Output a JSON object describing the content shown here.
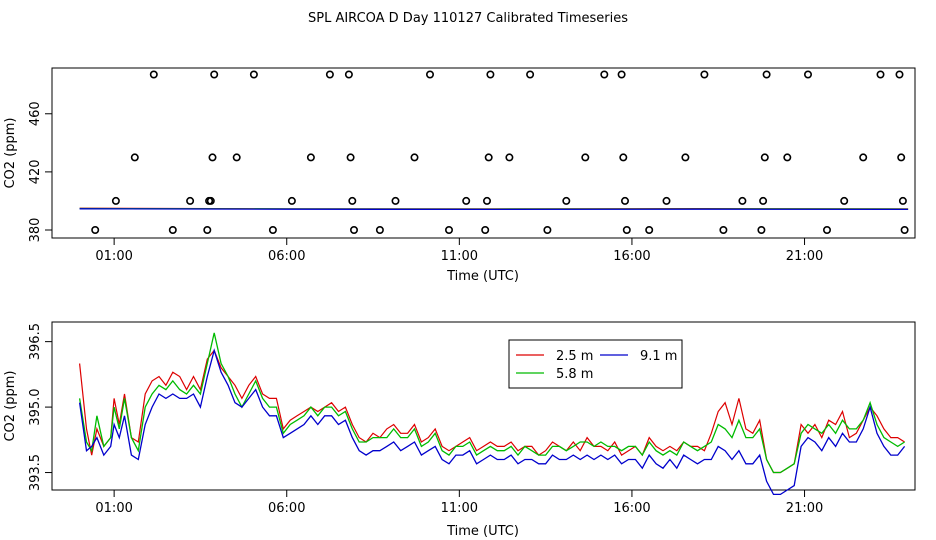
{
  "title": "SPL AIRCOA D  Day 110127  Calibrated Timeseries",
  "colors": {
    "2.5 m": "#dd0000",
    "5.8 m": "#00bb00",
    "9.1 m": "#0000cc",
    "points": "#000000"
  },
  "chart_data": [
    {
      "type": "scatter",
      "xlabel": "Time (UTC)",
      "ylabel": "CO2 (ppm)",
      "xlim": [
        -0.8,
        24.2
      ],
      "ylim": [
        374.5,
        491.5
      ],
      "x_ticks": [
        1,
        6,
        11,
        16,
        21
      ],
      "x_tick_labels": [
        "01:00",
        "06:00",
        "11:00",
        "16:00",
        "21:00"
      ],
      "y_ticks": [
        380,
        420,
        460
      ],
      "y_tick_labels": [
        "380",
        "420",
        "460"
      ],
      "grid": false,
      "points": [
        [
          0.45,
          380
        ],
        [
          1.05,
          400
        ],
        [
          1.6,
          430
        ],
        [
          2.15,
          487
        ],
        [
          2.7,
          380
        ],
        [
          3.2,
          400
        ],
        [
          3.7,
          380
        ],
        [
          3.75,
          400
        ],
        [
          3.8,
          400
        ],
        [
          3.85,
          430
        ],
        [
          3.9,
          487
        ],
        [
          4.55,
          430
        ],
        [
          5.05,
          487
        ],
        [
          5.6,
          380
        ],
        [
          6.15,
          400
        ],
        [
          6.7,
          430
        ],
        [
          7.25,
          487
        ],
        [
          7.8,
          487
        ],
        [
          7.85,
          430
        ],
        [
          7.9,
          400
        ],
        [
          7.95,
          380
        ],
        [
          8.7,
          380
        ],
        [
          9.15,
          400
        ],
        [
          9.7,
          430
        ],
        [
          10.15,
          487
        ],
        [
          10.7,
          380
        ],
        [
          11.2,
          400
        ],
        [
          11.75,
          380
        ],
        [
          11.8,
          400
        ],
        [
          11.85,
          430
        ],
        [
          11.9,
          487
        ],
        [
          12.45,
          430
        ],
        [
          13.05,
          487
        ],
        [
          13.55,
          380
        ],
        [
          14.1,
          400
        ],
        [
          14.65,
          430
        ],
        [
          15.2,
          487
        ],
        [
          15.7,
          487
        ],
        [
          15.75,
          430
        ],
        [
          15.8,
          400
        ],
        [
          15.85,
          380
        ],
        [
          16.5,
          380
        ],
        [
          17.0,
          400
        ],
        [
          17.55,
          430
        ],
        [
          18.1,
          487
        ],
        [
          18.65,
          380
        ],
        [
          19.2,
          400
        ],
        [
          19.75,
          380
        ],
        [
          19.8,
          400
        ],
        [
          19.85,
          430
        ],
        [
          19.9,
          487
        ],
        [
          20.5,
          430
        ],
        [
          21.1,
          487
        ],
        [
          21.65,
          380
        ],
        [
          22.15,
          400
        ],
        [
          22.7,
          430
        ],
        [
          23.2,
          487
        ],
        [
          23.75,
          487
        ],
        [
          23.8,
          430
        ],
        [
          23.85,
          400
        ],
        [
          23.9,
          380
        ]
      ],
      "series": [
        {
          "name": "2.5 m",
          "x": [
            0,
            6,
            12,
            18,
            24
          ],
          "values": [
            395.0,
            394.6,
            394.5,
            394.7,
            394.5
          ]
        },
        {
          "name": "5.8 m",
          "x": [
            0,
            6,
            12,
            18,
            24
          ],
          "values": [
            394.8,
            394.5,
            394.4,
            394.5,
            394.4
          ]
        },
        {
          "name": "9.1 m",
          "x": [
            0,
            6,
            12,
            18,
            24
          ],
          "values": [
            394.6,
            394.3,
            394.2,
            394.3,
            394.2
          ]
        }
      ]
    },
    {
      "type": "line",
      "xlabel": "Time (UTC)",
      "ylabel": "CO2 (ppm)",
      "xlim": [
        -0.8,
        24.2
      ],
      "ylim": [
        393.1,
        396.95
      ],
      "x_ticks": [
        1,
        6,
        11,
        16,
        21
      ],
      "x_tick_labels": [
        "01:00",
        "06:00",
        "11:00",
        "16:00",
        "21:00"
      ],
      "y_ticks": [
        393.5,
        395.0,
        396.5
      ],
      "y_tick_labels": [
        "393.5",
        "395.0",
        "396.5"
      ],
      "grid": false,
      "legend": {
        "placement": "top-right"
      },
      "x": [
        0.0,
        0.2,
        0.35,
        0.5,
        0.7,
        0.9,
        1.0,
        1.15,
        1.3,
        1.5,
        1.7,
        1.9,
        2.1,
        2.3,
        2.5,
        2.7,
        2.9,
        3.1,
        3.3,
        3.5,
        3.7,
        3.9,
        4.1,
        4.3,
        4.5,
        4.7,
        4.9,
        5.1,
        5.3,
        5.5,
        5.7,
        5.9,
        6.1,
        6.3,
        6.5,
        6.7,
        6.9,
        7.1,
        7.3,
        7.5,
        7.7,
        7.9,
        8.1,
        8.3,
        8.5,
        8.7,
        8.9,
        9.1,
        9.3,
        9.5,
        9.7,
        9.9,
        10.1,
        10.3,
        10.5,
        10.7,
        10.9,
        11.1,
        11.3,
        11.5,
        11.7,
        11.9,
        12.1,
        12.3,
        12.5,
        12.7,
        12.9,
        13.1,
        13.3,
        13.5,
        13.7,
        13.9,
        14.1,
        14.3,
        14.5,
        14.7,
        14.9,
        15.1,
        15.3,
        15.5,
        15.7,
        15.9,
        16.1,
        16.3,
        16.5,
        16.7,
        16.9,
        17.1,
        17.3,
        17.5,
        17.7,
        17.9,
        18.1,
        18.3,
        18.5,
        18.7,
        18.9,
        19.1,
        19.3,
        19.5,
        19.7,
        19.9,
        20.1,
        20.3,
        20.5,
        20.7,
        20.9,
        21.1,
        21.3,
        21.5,
        21.7,
        21.9,
        22.1,
        22.3,
        22.5,
        22.7,
        22.9,
        23.1,
        23.3,
        23.5,
        23.7,
        23.9
      ],
      "series": [
        {
          "name": "2.5 m",
          "values": [
            396.0,
            394.5,
            393.9,
            394.5,
            394.1,
            394.3,
            395.2,
            394.6,
            395.3,
            394.3,
            394.2,
            395.3,
            395.6,
            395.7,
            395.5,
            395.8,
            395.7,
            395.4,
            395.7,
            395.4,
            396.1,
            396.3,
            395.9,
            395.7,
            395.5,
            395.2,
            395.5,
            395.7,
            395.3,
            395.2,
            395.2,
            394.5,
            394.7,
            394.8,
            394.9,
            395.0,
            394.9,
            395.0,
            395.1,
            394.9,
            395.0,
            394.6,
            394.3,
            394.2,
            394.4,
            394.3,
            394.5,
            394.6,
            394.4,
            394.4,
            394.6,
            394.2,
            394.3,
            394.5,
            394.1,
            394.0,
            394.1,
            394.2,
            394.3,
            394.0,
            394.1,
            394.2,
            394.1,
            394.1,
            394.2,
            394.0,
            394.1,
            394.1,
            393.9,
            394.0,
            394.2,
            394.1,
            394.0,
            394.2,
            394.0,
            394.3,
            394.1,
            394.1,
            394.0,
            394.2,
            393.9,
            394.0,
            394.1,
            393.9,
            394.3,
            394.1,
            394.0,
            394.1,
            394.0,
            394.2,
            394.1,
            394.1,
            394.0,
            394.4,
            394.9,
            395.1,
            394.6,
            395.2,
            394.5,
            394.4,
            394.7,
            393.8,
            393.5,
            393.5,
            393.6,
            393.7,
            394.6,
            394.4,
            394.6,
            394.3,
            394.7,
            394.6,
            394.9,
            394.3,
            394.4,
            394.7,
            395.0,
            394.8,
            394.5,
            394.3,
            394.3,
            394.2
          ]
        },
        {
          "name": "5.8 m",
          "values": [
            395.2,
            394.2,
            394.0,
            394.8,
            394.1,
            394.3,
            395.0,
            394.5,
            395.2,
            394.3,
            394.0,
            395.0,
            395.3,
            395.5,
            395.4,
            395.6,
            395.4,
            395.3,
            395.5,
            395.3,
            396.0,
            396.7,
            396.0,
            395.7,
            395.3,
            395.0,
            395.3,
            395.6,
            395.2,
            395.0,
            395.0,
            394.4,
            394.6,
            394.7,
            394.8,
            395.0,
            394.8,
            395.0,
            395.0,
            394.8,
            394.9,
            394.5,
            394.2,
            394.2,
            394.3,
            394.3,
            394.3,
            394.5,
            394.3,
            394.3,
            394.5,
            394.1,
            394.2,
            394.4,
            394.0,
            393.9,
            394.1,
            394.1,
            394.2,
            393.9,
            394.0,
            394.1,
            394.0,
            394.0,
            394.1,
            393.9,
            394.1,
            394.0,
            393.9,
            393.9,
            394.1,
            394.1,
            394.0,
            394.1,
            394.2,
            394.2,
            394.1,
            394.2,
            394.1,
            394.1,
            394.0,
            394.1,
            394.1,
            393.9,
            394.2,
            394.0,
            393.9,
            394.0,
            393.9,
            394.2,
            394.1,
            394.0,
            394.1,
            394.2,
            394.6,
            394.5,
            394.3,
            394.7,
            394.3,
            394.3,
            394.5,
            393.8,
            393.5,
            393.5,
            393.6,
            393.7,
            394.4,
            394.6,
            394.5,
            394.4,
            394.6,
            394.4,
            394.7,
            394.5,
            394.5,
            394.7,
            395.1,
            394.6,
            394.3,
            394.2,
            394.1,
            394.2
          ]
        },
        {
          "name": "9.1 m",
          "values": [
            395.1,
            394.0,
            394.1,
            394.3,
            393.9,
            394.1,
            394.6,
            394.3,
            394.8,
            393.9,
            393.8,
            394.6,
            395.0,
            395.3,
            395.2,
            395.3,
            395.2,
            395.2,
            395.3,
            395.0,
            395.7,
            396.3,
            395.8,
            395.5,
            395.1,
            395.0,
            395.2,
            395.4,
            395.0,
            394.8,
            394.8,
            394.3,
            394.4,
            394.5,
            394.6,
            394.8,
            394.6,
            394.8,
            394.8,
            394.6,
            394.7,
            394.3,
            394.0,
            393.9,
            394.0,
            394.0,
            394.1,
            394.2,
            394.0,
            394.1,
            394.2,
            393.9,
            394.0,
            394.1,
            393.8,
            393.7,
            393.9,
            393.9,
            394.0,
            393.7,
            393.8,
            393.9,
            393.8,
            393.8,
            393.9,
            393.7,
            393.8,
            393.8,
            393.7,
            393.7,
            393.9,
            393.8,
            393.8,
            393.9,
            393.8,
            393.9,
            393.8,
            393.9,
            393.8,
            393.9,
            393.7,
            393.8,
            393.8,
            393.6,
            393.9,
            393.7,
            393.6,
            393.8,
            393.6,
            393.9,
            393.8,
            393.7,
            393.8,
            393.8,
            394.1,
            394.0,
            393.8,
            394.0,
            393.7,
            393.7,
            393.9,
            393.3,
            393.0,
            393.0,
            393.1,
            393.2,
            394.1,
            394.3,
            394.2,
            394.0,
            394.3,
            394.1,
            394.4,
            394.2,
            394.2,
            394.5,
            395.0,
            394.4,
            394.1,
            393.9,
            393.9,
            394.1
          ]
        }
      ]
    }
  ]
}
